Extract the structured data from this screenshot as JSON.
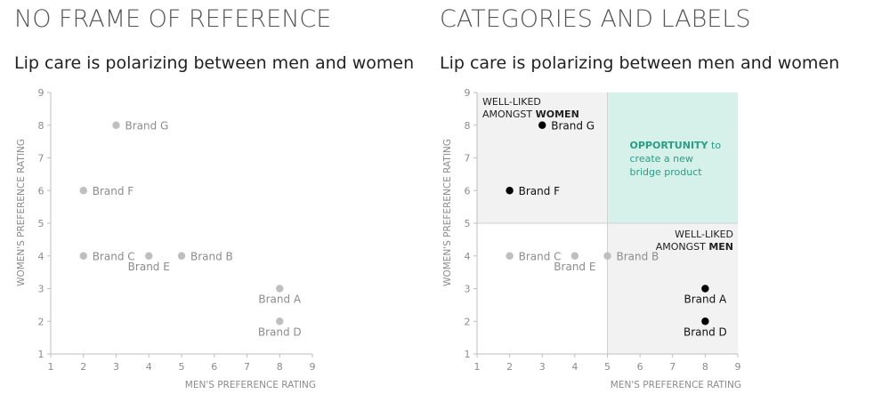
{
  "panels": [
    {
      "heading": "NO FRAME OF REFERENCE",
      "subtitle": "Lip care is polarizing between men and women"
    },
    {
      "heading": "CATEGORIES AND LABELS",
      "subtitle": "Lip care is polarizing between men and women"
    }
  ],
  "chart_data": [
    {
      "type": "scatter",
      "title": "Lip care is polarizing between men and women",
      "xlabel": "MEN'S PREFERENCE RATING",
      "ylabel": "WOMEN'S PREFERENCE RATING",
      "xlim": [
        1,
        9
      ],
      "ylim": [
        1,
        9
      ],
      "x_ticks": [
        1,
        2,
        3,
        4,
        5,
        6,
        7,
        8,
        9
      ],
      "y_ticks": [
        1,
        2,
        3,
        4,
        5,
        6,
        7,
        8,
        9
      ],
      "grid": false,
      "points": [
        {
          "label": "Brand A",
          "x": 8,
          "y": 3,
          "label_pos": "below",
          "highlight": false
        },
        {
          "label": "Brand B",
          "x": 5,
          "y": 4,
          "label_pos": "right",
          "highlight": false
        },
        {
          "label": "Brand C",
          "x": 2,
          "y": 4,
          "label_pos": "right",
          "highlight": false
        },
        {
          "label": "Brand D",
          "x": 8,
          "y": 2,
          "label_pos": "below",
          "highlight": false
        },
        {
          "label": "Brand E",
          "x": 4,
          "y": 4,
          "label_pos": "below",
          "highlight": false
        },
        {
          "label": "Brand F",
          "x": 2,
          "y": 6,
          "label_pos": "right",
          "highlight": false
        },
        {
          "label": "Brand G",
          "x": 3,
          "y": 8,
          "label_pos": "right",
          "highlight": false
        }
      ],
      "colors": {
        "point": "#bfbfbf",
        "label": "#8c8c8c",
        "axis": "#bfbfbf",
        "axis_text": "#8c8c8c"
      }
    },
    {
      "type": "scatter",
      "title": "Lip care is polarizing between men and women",
      "xlabel": "MEN'S PREFERENCE RATING",
      "ylabel": "WOMEN'S PREFERENCE RATING",
      "xlim": [
        1,
        9
      ],
      "ylim": [
        1,
        9
      ],
      "x_ticks": [
        1,
        2,
        3,
        4,
        5,
        6,
        7,
        8,
        9
      ],
      "y_ticks": [
        1,
        2,
        3,
        4,
        5,
        6,
        7,
        8,
        9
      ],
      "grid": false,
      "quadrants": [
        {
          "x": [
            1,
            5
          ],
          "y": [
            5,
            9
          ],
          "fill": "#f2f2f2",
          "label_lines": [
            [
              "WELL-LIKED",
              ""
            ],
            [
              "AMONGST ",
              "WOMEN"
            ]
          ],
          "label_pos": "top-left",
          "label_color": "#222222"
        },
        {
          "x": [
            5,
            9
          ],
          "y": [
            5,
            9
          ],
          "fill": "#d6f0ea",
          "label_lines": [
            [
              "OPPORTUNITY",
              " to"
            ],
            [
              "create a new",
              ""
            ],
            [
              "bridge product",
              ""
            ]
          ],
          "label_pos": "center-left",
          "label_color": "#2a9d86"
        },
        {
          "x": [
            5,
            9
          ],
          "y": [
            1,
            5
          ],
          "fill": "#f2f2f2",
          "label_lines": [
            [
              "WELL-LIKED",
              ""
            ],
            [
              "AMONGST ",
              "MEN"
            ]
          ],
          "label_pos": "top-right",
          "label_color": "#222222"
        }
      ],
      "points": [
        {
          "label": "Brand A",
          "x": 8,
          "y": 3,
          "label_pos": "below",
          "highlight": true
        },
        {
          "label": "Brand B",
          "x": 5,
          "y": 4,
          "label_pos": "right",
          "highlight": false
        },
        {
          "label": "Brand C",
          "x": 2,
          "y": 4,
          "label_pos": "right",
          "highlight": false
        },
        {
          "label": "Brand D",
          "x": 8,
          "y": 2,
          "label_pos": "below",
          "highlight": true
        },
        {
          "label": "Brand E",
          "x": 4,
          "y": 4,
          "label_pos": "below",
          "highlight": false
        },
        {
          "label": "Brand F",
          "x": 2,
          "y": 6,
          "label_pos": "right",
          "highlight": true
        },
        {
          "label": "Brand G",
          "x": 3,
          "y": 8,
          "label_pos": "right",
          "highlight": true
        }
      ],
      "colors": {
        "point": "#bfbfbf",
        "label": "#8c8c8c",
        "highlight_point": "#000000",
        "highlight_label": "#111111",
        "axis": "#bfbfbf",
        "axis_text": "#8c8c8c",
        "divider": "#d0d0d0"
      }
    }
  ]
}
